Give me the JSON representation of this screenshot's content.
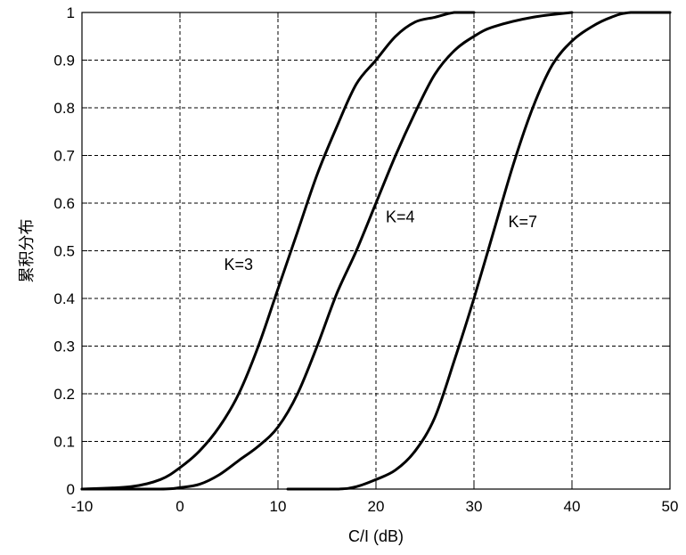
{
  "chart_data": {
    "type": "line",
    "title": "",
    "xlabel": "C/I (dB)",
    "ylabel": "累积分布",
    "xlim": [
      -10,
      50
    ],
    "ylim": [
      0,
      1
    ],
    "grid": true,
    "xticks": [
      -10,
      0,
      10,
      20,
      30,
      40,
      50
    ],
    "yticks": [
      0,
      0.1,
      0.2,
      0.3,
      0.4,
      0.5,
      0.6,
      0.7,
      0.8,
      0.9,
      1
    ],
    "xtick_labels": [
      "-10",
      "0",
      "10",
      "20",
      "30",
      "40",
      "50"
    ],
    "ytick_labels": [
      "0",
      "0.1",
      "0.2",
      "0.3",
      "0.4",
      "0.5",
      "0.6",
      "0.7",
      "0.8",
      "0.9",
      "1"
    ],
    "series": [
      {
        "name": "K=3",
        "x": [
          -10,
          -5,
          -2,
          0,
          2,
          4,
          6,
          8,
          10,
          12,
          14,
          16,
          18,
          20,
          22,
          24,
          26,
          28,
          30
        ],
        "y": [
          0,
          0.005,
          0.02,
          0.045,
          0.08,
          0.13,
          0.2,
          0.3,
          0.42,
          0.54,
          0.66,
          0.76,
          0.85,
          0.9,
          0.95,
          0.98,
          0.99,
          1,
          1
        ]
      },
      {
        "name": "K=4",
        "x": [
          -10,
          -2,
          0,
          2,
          4,
          6,
          8,
          10,
          12,
          14,
          16,
          18,
          20,
          22,
          24,
          26,
          28,
          30,
          32,
          36,
          40
        ],
        "y": [
          0,
          0,
          0.003,
          0.01,
          0.03,
          0.06,
          0.09,
          0.13,
          0.2,
          0.3,
          0.41,
          0.5,
          0.6,
          0.7,
          0.79,
          0.87,
          0.92,
          0.95,
          0.97,
          0.99,
          1
        ]
      },
      {
        "name": "K=7",
        "x": [
          11,
          16,
          18,
          20,
          22,
          24,
          26,
          28,
          30,
          32,
          34,
          36,
          38,
          40,
          42,
          44,
          46,
          50
        ],
        "y": [
          0,
          0,
          0.005,
          0.02,
          0.04,
          0.08,
          0.15,
          0.27,
          0.4,
          0.54,
          0.68,
          0.8,
          0.89,
          0.94,
          0.97,
          0.99,
          1,
          1
        ]
      }
    ],
    "annotations": [
      {
        "text": "K=3",
        "x": 4.5,
        "y": 0.46
      },
      {
        "text": "K=4",
        "x": 21,
        "y": 0.56
      },
      {
        "text": "K=7",
        "x": 33.5,
        "y": 0.55
      }
    ]
  }
}
